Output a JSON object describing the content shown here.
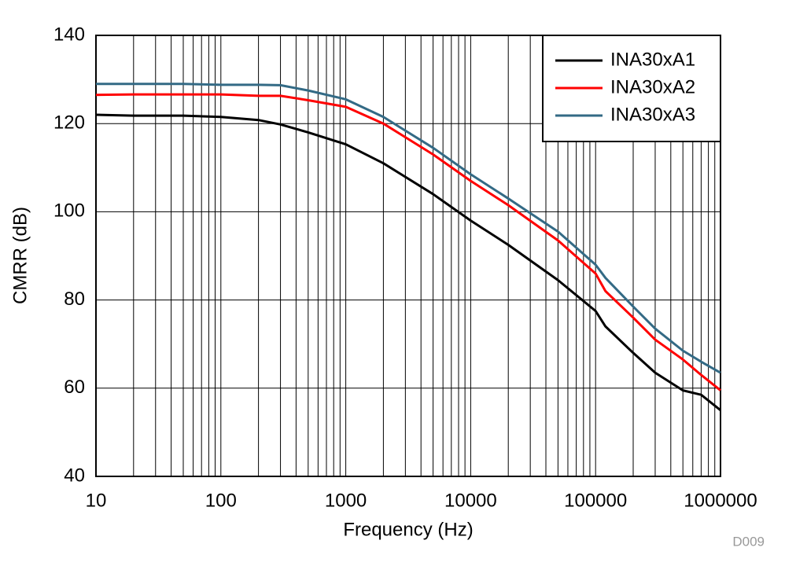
{
  "chart_data": {
    "type": "line",
    "x_label": "Frequency (Hz)",
    "y_label": "CMRR (dB)",
    "annotation": "D009",
    "x": [
      10,
      20,
      50,
      100,
      200,
      300,
      500,
      1000,
      2000,
      5000,
      10000,
      20000,
      50000,
      100000,
      120000,
      200000,
      300000,
      500000,
      700000,
      1000000
    ],
    "series": [
      {
        "name": "INA30xA1",
        "color": "#000000",
        "values": [
          122,
          121.8,
          121.8,
          121.5,
          120.8,
          119.8,
          118,
          115.3,
          111,
          104,
          98,
          92.5,
          84.5,
          77.5,
          74,
          68,
          63.5,
          59.5,
          58.5,
          55
        ]
      },
      {
        "name": "INA30xA2",
        "color": "#ff0000",
        "values": [
          126.5,
          126.6,
          126.6,
          126.6,
          126.3,
          126.3,
          125.3,
          123.8,
          120,
          113,
          107,
          101.5,
          93.5,
          86,
          82,
          76,
          71,
          66.5,
          63,
          59.5
        ]
      },
      {
        "name": "INA30xA3",
        "color": "#336a85",
        "values": [
          129,
          129,
          129,
          128.8,
          128.8,
          128.7,
          127.5,
          125.5,
          121.5,
          114.5,
          108.5,
          103,
          95.5,
          88,
          85,
          78.5,
          73.5,
          68.5,
          66,
          63.5
        ]
      }
    ],
    "xlim": [
      10,
      1000000
    ],
    "xticks": [
      10,
      100,
      1000,
      10000,
      100000,
      1000000
    ],
    "xscale": "log",
    "ylim": [
      40,
      140
    ],
    "yticks": [
      40,
      60,
      80,
      100,
      120,
      140
    ],
    "grid": true,
    "legend": "upper right"
  }
}
